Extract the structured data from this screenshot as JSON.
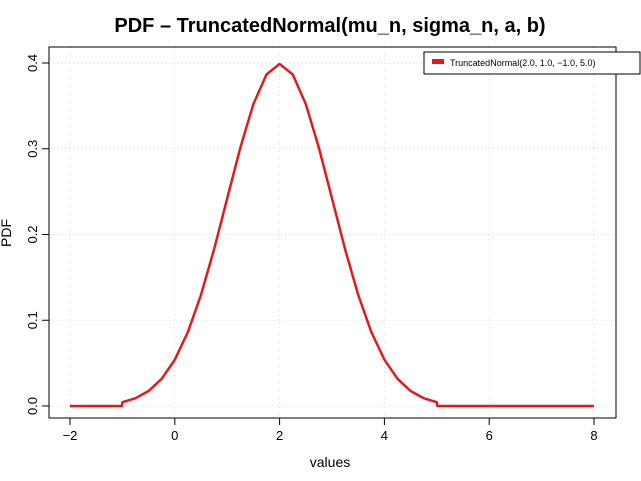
{
  "chart_data": {
    "type": "line",
    "title": "PDF – TruncatedNormal(mu_n, sigma_n, a, b)",
    "xlabel": "values",
    "ylabel": "PDF",
    "xlim": [
      -2,
      8
    ],
    "ylim": [
      0,
      0.4
    ],
    "x_ticks": [
      -2,
      0,
      2,
      4,
      6,
      8
    ],
    "x_tick_labels": [
      "−2",
      "0",
      "2",
      "4",
      "6",
      "8"
    ],
    "y_ticks": [
      0,
      0.1,
      0.2,
      0.3,
      0.4
    ],
    "y_tick_labels": [
      "0.0",
      "0.1",
      "0.2",
      "0.3",
      "0.4"
    ],
    "grid": true,
    "legend_position": "top-right",
    "colors": {
      "series": "#e31a1c"
    },
    "series": [
      {
        "name": "TruncatedNormal(2.0, 1.0, −1.0, 5.0)",
        "x": [
          -2.0,
          -1.5,
          -1.01,
          -1.0,
          -0.75,
          -0.5,
          -0.25,
          0.0,
          0.25,
          0.5,
          0.75,
          1.0,
          1.25,
          1.5,
          1.75,
          2.0,
          2.25,
          2.5,
          2.75,
          3.0,
          3.25,
          3.5,
          3.75,
          4.0,
          4.25,
          4.5,
          4.75,
          5.0,
          5.01,
          5.5,
          6.0,
          7.0,
          8.0
        ],
        "y": [
          0.0,
          0.0,
          0.0,
          0.0044,
          0.0091,
          0.0175,
          0.0317,
          0.054,
          0.0863,
          0.1296,
          0.1828,
          0.242,
          0.3011,
          0.3521,
          0.3867,
          0.3989,
          0.3867,
          0.3521,
          0.3011,
          0.242,
          0.1828,
          0.1296,
          0.0863,
          0.054,
          0.0317,
          0.0175,
          0.0091,
          0.0044,
          0.0,
          0.0,
          0.0,
          0.0,
          0.0
        ]
      }
    ]
  }
}
